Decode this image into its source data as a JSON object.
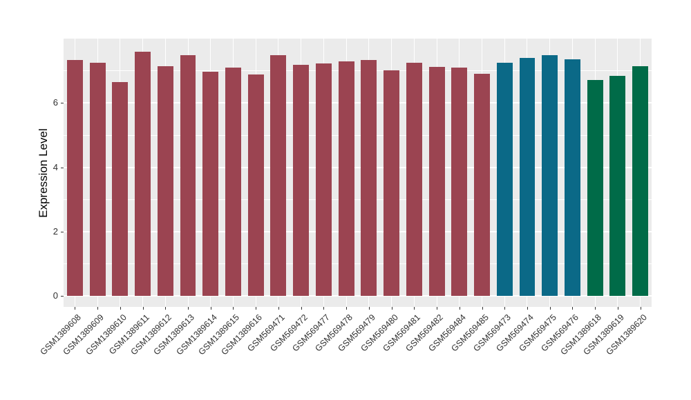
{
  "chart_data": {
    "type": "bar",
    "title": "",
    "xlabel": "",
    "ylabel": "Expression Level",
    "legend_position": "none",
    "grid": "on",
    "panel_bg": "#EBEBEB",
    "grid_color": "#FFFFFF",
    "axis_text_color": "#303030",
    "palette": {
      "maroon": "#9B4451",
      "teal": "#0B6987",
      "green": "#006B48"
    },
    "y_ticks": [
      0,
      2,
      4,
      6
    ],
    "y_minor_ticks": [
      1,
      3,
      5,
      7
    ],
    "ylim": [
      0,
      8
    ],
    "categories": [
      "GSM1389608",
      "GSM1389609",
      "GSM1389610",
      "GSM1389611",
      "GSM1389612",
      "GSM1389613",
      "GSM1389614",
      "GSM1389615",
      "GSM1389616",
      "GSM569471",
      "GSM569472",
      "GSM569477",
      "GSM569478",
      "GSM569479",
      "GSM569480",
      "GSM569481",
      "GSM569482",
      "GSM569484",
      "GSM569485",
      "GSM569473",
      "GSM569474",
      "GSM569475",
      "GSM569476",
      "GSM1389618",
      "GSM1389619",
      "GSM1389620"
    ],
    "values": [
      7.33,
      7.26,
      6.65,
      7.6,
      7.14,
      7.48,
      6.97,
      7.1,
      6.88,
      7.5,
      7.18,
      7.24,
      7.3,
      7.33,
      7.02,
      7.26,
      7.12,
      7.1,
      6.9,
      7.25,
      7.4,
      7.48,
      7.37,
      6.72,
      6.85,
      7.14
    ],
    "bar_color_keys": [
      "maroon",
      "maroon",
      "maroon",
      "maroon",
      "maroon",
      "maroon",
      "maroon",
      "maroon",
      "maroon",
      "maroon",
      "maroon",
      "maroon",
      "maroon",
      "maroon",
      "maroon",
      "maroon",
      "maroon",
      "maroon",
      "maroon",
      "teal",
      "teal",
      "teal",
      "teal",
      "green",
      "green",
      "green"
    ]
  }
}
